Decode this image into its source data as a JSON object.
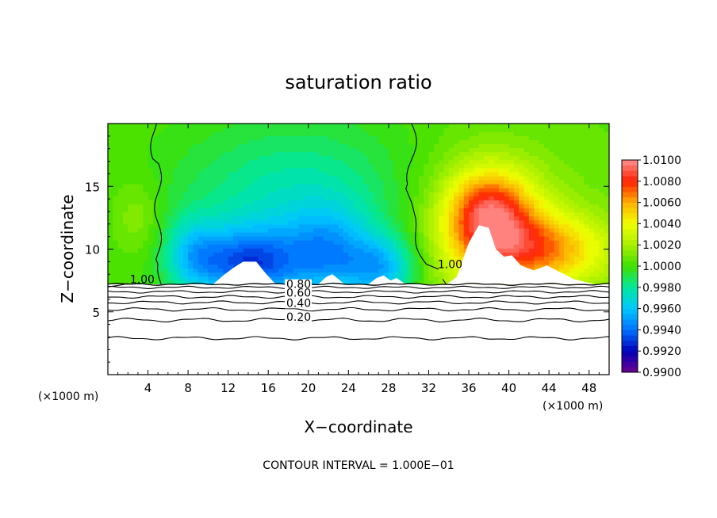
{
  "chart_data": {
    "type": "heatmap",
    "title": "saturation ratio",
    "xlabel": "X−coordinate",
    "ylabel": "Z−coordinate",
    "x_unit_left": "(×1000 m)",
    "x_unit_right": "(×1000 m)",
    "footer": "CONTOUR INTERVAL = 1.000E−01",
    "xlim": [
      0,
      50
    ],
    "ylim": [
      0,
      20
    ],
    "xticks": [
      4,
      8,
      12,
      16,
      20,
      24,
      28,
      32,
      36,
      40,
      44,
      48
    ],
    "xtick_labels": [
      "4",
      "8",
      "12",
      "16",
      "20",
      "24",
      "28",
      "32",
      "36",
      "40",
      "44",
      "48"
    ],
    "yticks": [
      5,
      10,
      15
    ],
    "ytick_labels": [
      "5",
      "10",
      "15"
    ],
    "colorbar": {
      "min": 0.99,
      "max": 1.01,
      "step": 0.0005,
      "labels": [
        "0.9900",
        "0.9920",
        "0.9940",
        "0.9960",
        "0.9980",
        "1.0000",
        "1.0020",
        "1.0040",
        "1.0060",
        "1.0080",
        "1.0100"
      ],
      "colors": [
        "#6a008f",
        "#0000b8",
        "#0070ff",
        "#00c8ff",
        "#00e8a0",
        "#3fe000",
        "#a8f000",
        "#f0ff00",
        "#ffb000",
        "#ff2000",
        "#ff9090"
      ]
    },
    "contour_labels": [
      {
        "text": "1.00",
        "x": 2.2,
        "y": 7.3
      },
      {
        "text": "1.00",
        "x": 32.9,
        "y": 8.5
      },
      {
        "text": "0.80",
        "x": 17.8,
        "y": 6.9
      },
      {
        "text": "0.60",
        "x": 17.8,
        "y": 6.2
      },
      {
        "text": "0.40",
        "x": 17.8,
        "y": 5.4
      },
      {
        "text": "0.20",
        "x": 17.8,
        "y": 4.3
      }
    ]
  }
}
